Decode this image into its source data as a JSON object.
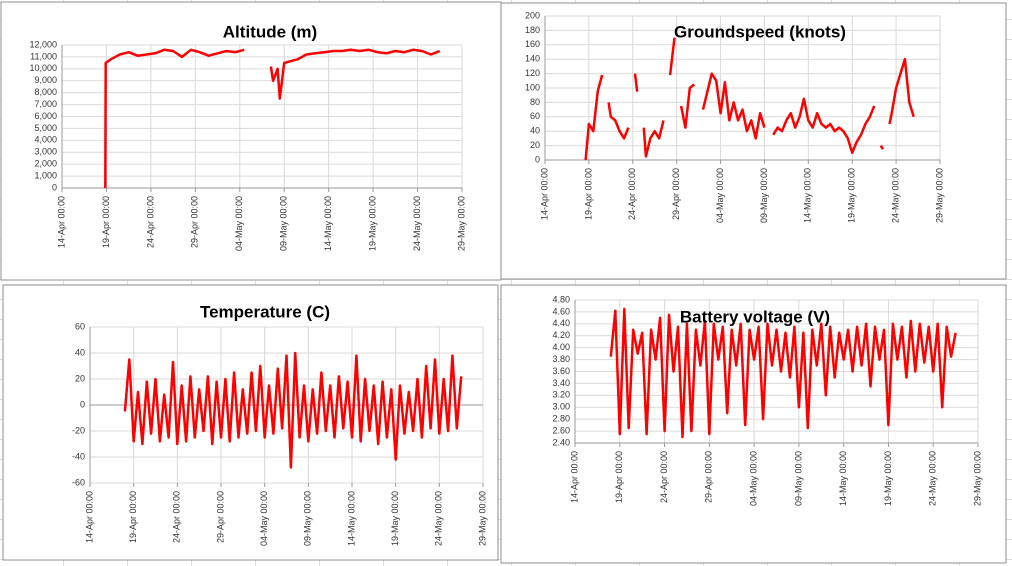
{
  "chart_data": [
    {
      "type": "line",
      "title": "Altitude (m)",
      "color": "#ff0000",
      "grid": true,
      "x": [
        "18-Apr 21:00",
        "18-Apr 22:00",
        "19-Apr 12:00",
        "20-Apr 12:00",
        "21-Apr 12:00",
        "22-Apr 12:00",
        "23-Apr 12:00",
        "24-Apr 12:00",
        "25-Apr 12:00",
        "26-Apr 12:00",
        "27-Apr 12:00",
        "28-Apr 12:00",
        "29-Apr 12:00",
        "30-Apr 12:00",
        "01-May 12:00",
        "02-May 12:00",
        "03-May 12:00",
        "04-May 12:00",
        "05-May 12:00",
        "07-May 12:00",
        "07-May 18:00",
        "08-May 06:00",
        "08-May 12:00",
        "09-May 00:00",
        "10-May 12:00",
        "11-May 12:00",
        "12-May 12:00",
        "13-May 12:00",
        "14-May 12:00",
        "15-May 12:00",
        "16-May 12:00",
        "17-May 12:00",
        "18-May 12:00",
        "19-May 12:00",
        "20-May 12:00",
        "21-May 12:00",
        "22-May 12:00",
        "23-May 12:00",
        "24-May 12:00",
        "25-May 12:00",
        "26-May 12:00"
      ],
      "values": [
        0,
        10500,
        10800,
        11200,
        11400,
        11100,
        11200,
        11300,
        11600,
        11500,
        11000,
        11600,
        11400,
        11100,
        11300,
        11500,
        11400,
        11600,
        null,
        10200,
        9000,
        10000,
        7500,
        10500,
        10800,
        11200,
        11300,
        11400,
        11500,
        11500,
        11600,
        11500,
        11600,
        11400,
        11300,
        11500,
        11400,
        11600,
        11500,
        11200,
        11500
      ],
      "xlim": [
        "14-Apr 00:00",
        "29-May 00:00"
      ],
      "xticks": [
        "14-Apr 00:00",
        "19-Apr 00:00",
        "24-Apr 00:00",
        "29-Apr 00:00",
        "04-May 00:00",
        "09-May 00:00",
        "14-May 00:00",
        "19-May 00:00",
        "24-May 00:00",
        "29-May 00:00"
      ],
      "ylim": [
        0,
        12000
      ],
      "yticks": [
        0,
        {
          "value": 1000,
          "label": "1,000"
        },
        {
          "value": 2000,
          "label": "2,000"
        },
        {
          "value": 3000,
          "label": "3,000"
        },
        {
          "value": 4000,
          "label": "4,000"
        },
        {
          "value": 5000,
          "label": "5,000"
        },
        {
          "value": 6000,
          "label": "6,000"
        },
        {
          "value": 7000,
          "label": "7,000"
        },
        {
          "value": 8000,
          "label": "8,000"
        },
        {
          "value": 9000,
          "label": "9,000"
        },
        {
          "value": 10000,
          "label": "10,000"
        },
        {
          "value": 11000,
          "label": "11,000"
        },
        {
          "value": 12000,
          "label": "12,000"
        }
      ]
    },
    {
      "type": "line",
      "title": "Groundspeed (knots)",
      "color": "#ff0000",
      "grid": true,
      "x": [
        "18-Apr 15:00",
        "19-Apr 00:00",
        "19-Apr 12:00",
        "20-Apr 00:00",
        "20-Apr 12:00",
        "21-Apr 00:00",
        "21-Apr 06:00",
        "21-Apr 12:00",
        "22-Apr 00:00",
        "22-Apr 12:00",
        "23-Apr 00:00",
        "23-Apr 12:00",
        "24-Apr 00:00",
        "24-Apr 06:00",
        "24-Apr 12:00",
        "25-Apr 00:00",
        "25-Apr 06:00",
        "25-Apr 12:00",
        "26-Apr 00:00",
        "26-Apr 12:00",
        "27-Apr 00:00",
        "27-Apr 12:00",
        "28-Apr 00:00",
        "28-Apr 06:00",
        "28-Apr 18:00",
        "29-Apr 00:00",
        "29-Apr 12:00",
        "30-Apr 00:00",
        "30-Apr 12:00",
        "01-May 00:00",
        "01-May 12:00",
        "02-May 00:00",
        "02-May 12:00",
        "03-May 00:00",
        "03-May 12:00",
        "04-May 00:00",
        "04-May 12:00",
        "05-May 00:00",
        "05-May 12:00",
        "06-May 00:00",
        "06-May 12:00",
        "07-May 00:00",
        "07-May 12:00",
        "08-May 00:00",
        "08-May 12:00",
        "09-May 00:00",
        "09-May 12:00",
        "10-May 00:00",
        "10-May 12:00",
        "11-May 00:00",
        "11-May 12:00",
        "12-May 00:00",
        "12-May 12:00",
        "13-May 00:00",
        "13-May 12:00",
        "14-May 00:00",
        "14-May 12:00",
        "15-May 00:00",
        "15-May 12:00",
        "16-May 00:00",
        "16-May 12:00",
        "17-May 00:00",
        "17-May 12:00",
        "18-May 00:00",
        "18-May 12:00",
        "19-May 00:00",
        "19-May 12:00",
        "20-May 00:00",
        "20-May 12:00",
        "21-May 00:00",
        "21-May 12:00",
        "22-May 00:00",
        "22-May 06:00",
        "22-May 12:00",
        "23-May 00:00",
        "23-May 06:00",
        "23-May 12:00",
        "24-May 00:00",
        "24-May 12:00",
        "25-May 00:00",
        "25-May 12:00",
        "26-May 00:00"
      ],
      "values": [
        0,
        50,
        40,
        95,
        118,
        null,
        80,
        60,
        55,
        40,
        30,
        45,
        null,
        120,
        95,
        null,
        45,
        5,
        30,
        40,
        30,
        55,
        null,
        118,
        170,
        null,
        75,
        45,
        100,
        105,
        null,
        70,
        95,
        120,
        110,
        65,
        108,
        55,
        80,
        55,
        70,
        40,
        55,
        30,
        65,
        45,
        null,
        35,
        45,
        40,
        55,
        65,
        45,
        60,
        85,
        55,
        45,
        65,
        50,
        45,
        50,
        40,
        45,
        40,
        30,
        10,
        25,
        35,
        50,
        60,
        75,
        null,
        20,
        15,
        null,
        50,
        65,
        100,
        120,
        140,
        80,
        60
      ],
      "xlim": [
        "14-Apr 00:00",
        "29-May 00:00"
      ],
      "xticks": [
        "14-Apr 00:00",
        "19-Apr 00:00",
        "24-Apr 00:00",
        "29-Apr 00:00",
        "04-May 00:00",
        "09-May 00:00",
        "14-May 00:00",
        "19-May 00:00",
        "24-May 00:00",
        "29-May 00:00"
      ],
      "ylim": [
        0,
        200
      ],
      "yticks": [
        0,
        20,
        40,
        60,
        80,
        100,
        120,
        140,
        160,
        180,
        200
      ]
    },
    {
      "type": "line",
      "title": "Temperature (C)",
      "color": "#ff0000",
      "grid": true,
      "x": [
        "18-Apr 00:00",
        "18-Apr 12:00",
        "19-Apr 00:00",
        "19-Apr 12:00",
        "20-Apr 00:00",
        "20-Apr 12:00",
        "21-Apr 00:00",
        "21-Apr 12:00",
        "22-Apr 00:00",
        "22-Apr 12:00",
        "23-Apr 00:00",
        "23-Apr 12:00",
        "24-Apr 00:00",
        "24-Apr 12:00",
        "25-Apr 00:00",
        "25-Apr 12:00",
        "26-Apr 00:00",
        "26-Apr 12:00",
        "27-Apr 00:00",
        "27-Apr 12:00",
        "28-Apr 00:00",
        "28-Apr 12:00",
        "29-Apr 00:00",
        "29-Apr 12:00",
        "30-Apr 00:00",
        "30-Apr 12:00",
        "01-May 00:00",
        "01-May 12:00",
        "02-May 00:00",
        "02-May 12:00",
        "03-May 00:00",
        "03-May 12:00",
        "04-May 00:00",
        "04-May 12:00",
        "05-May 00:00",
        "05-May 12:00",
        "06-May 00:00",
        "06-May 12:00",
        "07-May 00:00",
        "07-May 12:00",
        "08-May 00:00",
        "08-May 12:00",
        "09-May 00:00",
        "09-May 12:00",
        "10-May 00:00",
        "10-May 12:00",
        "11-May 00:00",
        "11-May 12:00",
        "12-May 00:00",
        "12-May 12:00",
        "13-May 00:00",
        "13-May 12:00",
        "14-May 00:00",
        "14-May 12:00",
        "15-May 00:00",
        "15-May 12:00",
        "16-May 00:00",
        "16-May 12:00",
        "17-May 00:00",
        "17-May 12:00",
        "18-May 00:00",
        "18-May 12:00",
        "19-May 00:00",
        "19-May 12:00",
        "20-May 00:00",
        "20-May 12:00",
        "21-May 00:00",
        "21-May 12:00",
        "22-May 00:00",
        "22-May 12:00",
        "23-May 00:00",
        "23-May 12:00",
        "24-May 00:00",
        "24-May 12:00",
        "25-May 00:00",
        "25-May 12:00",
        "26-May 00:00",
        "26-May 12:00"
      ],
      "values": [
        -5,
        35,
        -28,
        10,
        -30,
        18,
        -22,
        20,
        -28,
        8,
        -25,
        33,
        -30,
        15,
        -28,
        22,
        -25,
        12,
        -20,
        22,
        -30,
        18,
        -25,
        20,
        -28,
        25,
        -25,
        12,
        -22,
        25,
        -20,
        30,
        -25,
        15,
        -22,
        28,
        -18,
        38,
        -48,
        40,
        -25,
        15,
        -28,
        12,
        -22,
        25,
        -20,
        15,
        -25,
        22,
        -18,
        18,
        -25,
        38,
        -28,
        20,
        -20,
        15,
        -30,
        18,
        -25,
        12,
        -42,
        15,
        -22,
        10,
        -20,
        20,
        -25,
        30,
        -18,
        35,
        -22,
        20,
        -20,
        38,
        -18,
        22
      ],
      "xlim": [
        "14-Apr 00:00",
        "29-May 00:00"
      ],
      "xticks": [
        "14-Apr 00:00",
        "19-Apr 00:00",
        "24-Apr 00:00",
        "29-Apr 00:00",
        "04-May 00:00",
        "09-May 00:00",
        "14-May 00:00",
        "19-May 00:00",
        "24-May 00:00",
        "29-May 00:00"
      ],
      "ylim": [
        -60,
        60
      ],
      "yticks": [
        -60,
        -40,
        -20,
        0,
        20,
        40,
        60
      ]
    },
    {
      "type": "line",
      "title": "Battery voltage (V)",
      "color": "#ff0000",
      "grid": true,
      "x": [
        "18-Apr 00:00",
        "18-Apr 12:00",
        "19-Apr 00:00",
        "19-Apr 12:00",
        "20-Apr 00:00",
        "20-Apr 12:00",
        "21-Apr 00:00",
        "21-Apr 12:00",
        "22-Apr 00:00",
        "22-Apr 12:00",
        "23-Apr 00:00",
        "23-Apr 12:00",
        "24-Apr 00:00",
        "24-Apr 12:00",
        "25-Apr 00:00",
        "25-Apr 12:00",
        "26-Apr 00:00",
        "26-Apr 12:00",
        "27-Apr 00:00",
        "27-Apr 12:00",
        "28-Apr 00:00",
        "28-Apr 12:00",
        "29-Apr 00:00",
        "29-Apr 12:00",
        "30-Apr 00:00",
        "30-Apr 12:00",
        "01-May 00:00",
        "01-May 12:00",
        "02-May 00:00",
        "02-May 12:00",
        "03-May 00:00",
        "03-May 12:00",
        "04-May 00:00",
        "04-May 12:00",
        "05-May 00:00",
        "05-May 12:00",
        "06-May 00:00",
        "06-May 12:00",
        "07-May 00:00",
        "07-May 12:00",
        "08-May 00:00",
        "08-May 12:00",
        "09-May 00:00",
        "09-May 12:00",
        "10-May 00:00",
        "10-May 12:00",
        "11-May 00:00",
        "11-May 12:00",
        "12-May 00:00",
        "12-May 12:00",
        "13-May 00:00",
        "13-May 12:00",
        "14-May 00:00",
        "14-May 12:00",
        "15-May 00:00",
        "15-May 12:00",
        "16-May 00:00",
        "16-May 12:00",
        "17-May 00:00",
        "17-May 12:00",
        "18-May 00:00",
        "18-May 12:00",
        "19-May 00:00",
        "19-May 12:00",
        "20-May 00:00",
        "20-May 12:00",
        "21-May 00:00",
        "21-May 12:00",
        "22-May 00:00",
        "22-May 12:00",
        "23-May 00:00",
        "23-May 12:00",
        "24-May 00:00",
        "24-May 12:00",
        "25-May 00:00",
        "25-May 12:00",
        "26-May 00:00",
        "26-May 12:00"
      ],
      "values": [
        3.85,
        4.62,
        2.55,
        4.65,
        2.65,
        4.3,
        3.9,
        4.25,
        2.55,
        4.3,
        3.8,
        4.5,
        2.6,
        4.55,
        3.6,
        4.35,
        2.5,
        4.4,
        2.6,
        4.3,
        3.7,
        4.45,
        2.55,
        4.4,
        3.8,
        4.35,
        2.9,
        4.3,
        3.7,
        4.4,
        2.7,
        4.3,
        3.8,
        4.35,
        2.8,
        4.4,
        3.7,
        4.3,
        3.6,
        4.25,
        3.5,
        4.35,
        3.0,
        4.25,
        2.65,
        4.3,
        3.7,
        4.4,
        3.2,
        4.35,
        3.5,
        4.25,
        3.8,
        4.3,
        3.6,
        4.35,
        3.7,
        4.4,
        3.35,
        4.35,
        3.8,
        4.3,
        2.7,
        4.4,
        3.8,
        4.35,
        3.5,
        4.45,
        3.6,
        4.4,
        3.75,
        4.35,
        3.6,
        4.4,
        3.0,
        4.35,
        3.85,
        4.25
      ],
      "xlim": [
        "14-Apr 00:00",
        "29-May 00:00"
      ],
      "xticks": [
        "14-Apr 00:00",
        "19-Apr 00:00",
        "24-Apr 00:00",
        "29-Apr 00:00",
        "04-May 00:00",
        "09-May 00:00",
        "14-May 00:00",
        "19-May 00:00",
        "24-May 00:00",
        "29-May 00:00"
      ],
      "ylim": [
        2.4,
        4.8
      ],
      "yticks": [
        {
          "value": 2.4,
          "label": "2.40"
        },
        {
          "value": 2.6,
          "label": "2.60"
        },
        {
          "value": 2.8,
          "label": "2.80"
        },
        {
          "value": 3.0,
          "label": "3.00"
        },
        {
          "value": 3.2,
          "label": "3.20"
        },
        {
          "value": 3.4,
          "label": "3.40"
        },
        {
          "value": 3.6,
          "label": "3.60"
        },
        {
          "value": 3.8,
          "label": "3.80"
        },
        {
          "value": 4.0,
          "label": "4.00"
        },
        {
          "value": 4.2,
          "label": "4.20"
        },
        {
          "value": 4.4,
          "label": "4.40"
        },
        {
          "value": 4.6,
          "label": "4.60"
        },
        {
          "value": 4.8,
          "label": "4.80"
        }
      ]
    }
  ]
}
